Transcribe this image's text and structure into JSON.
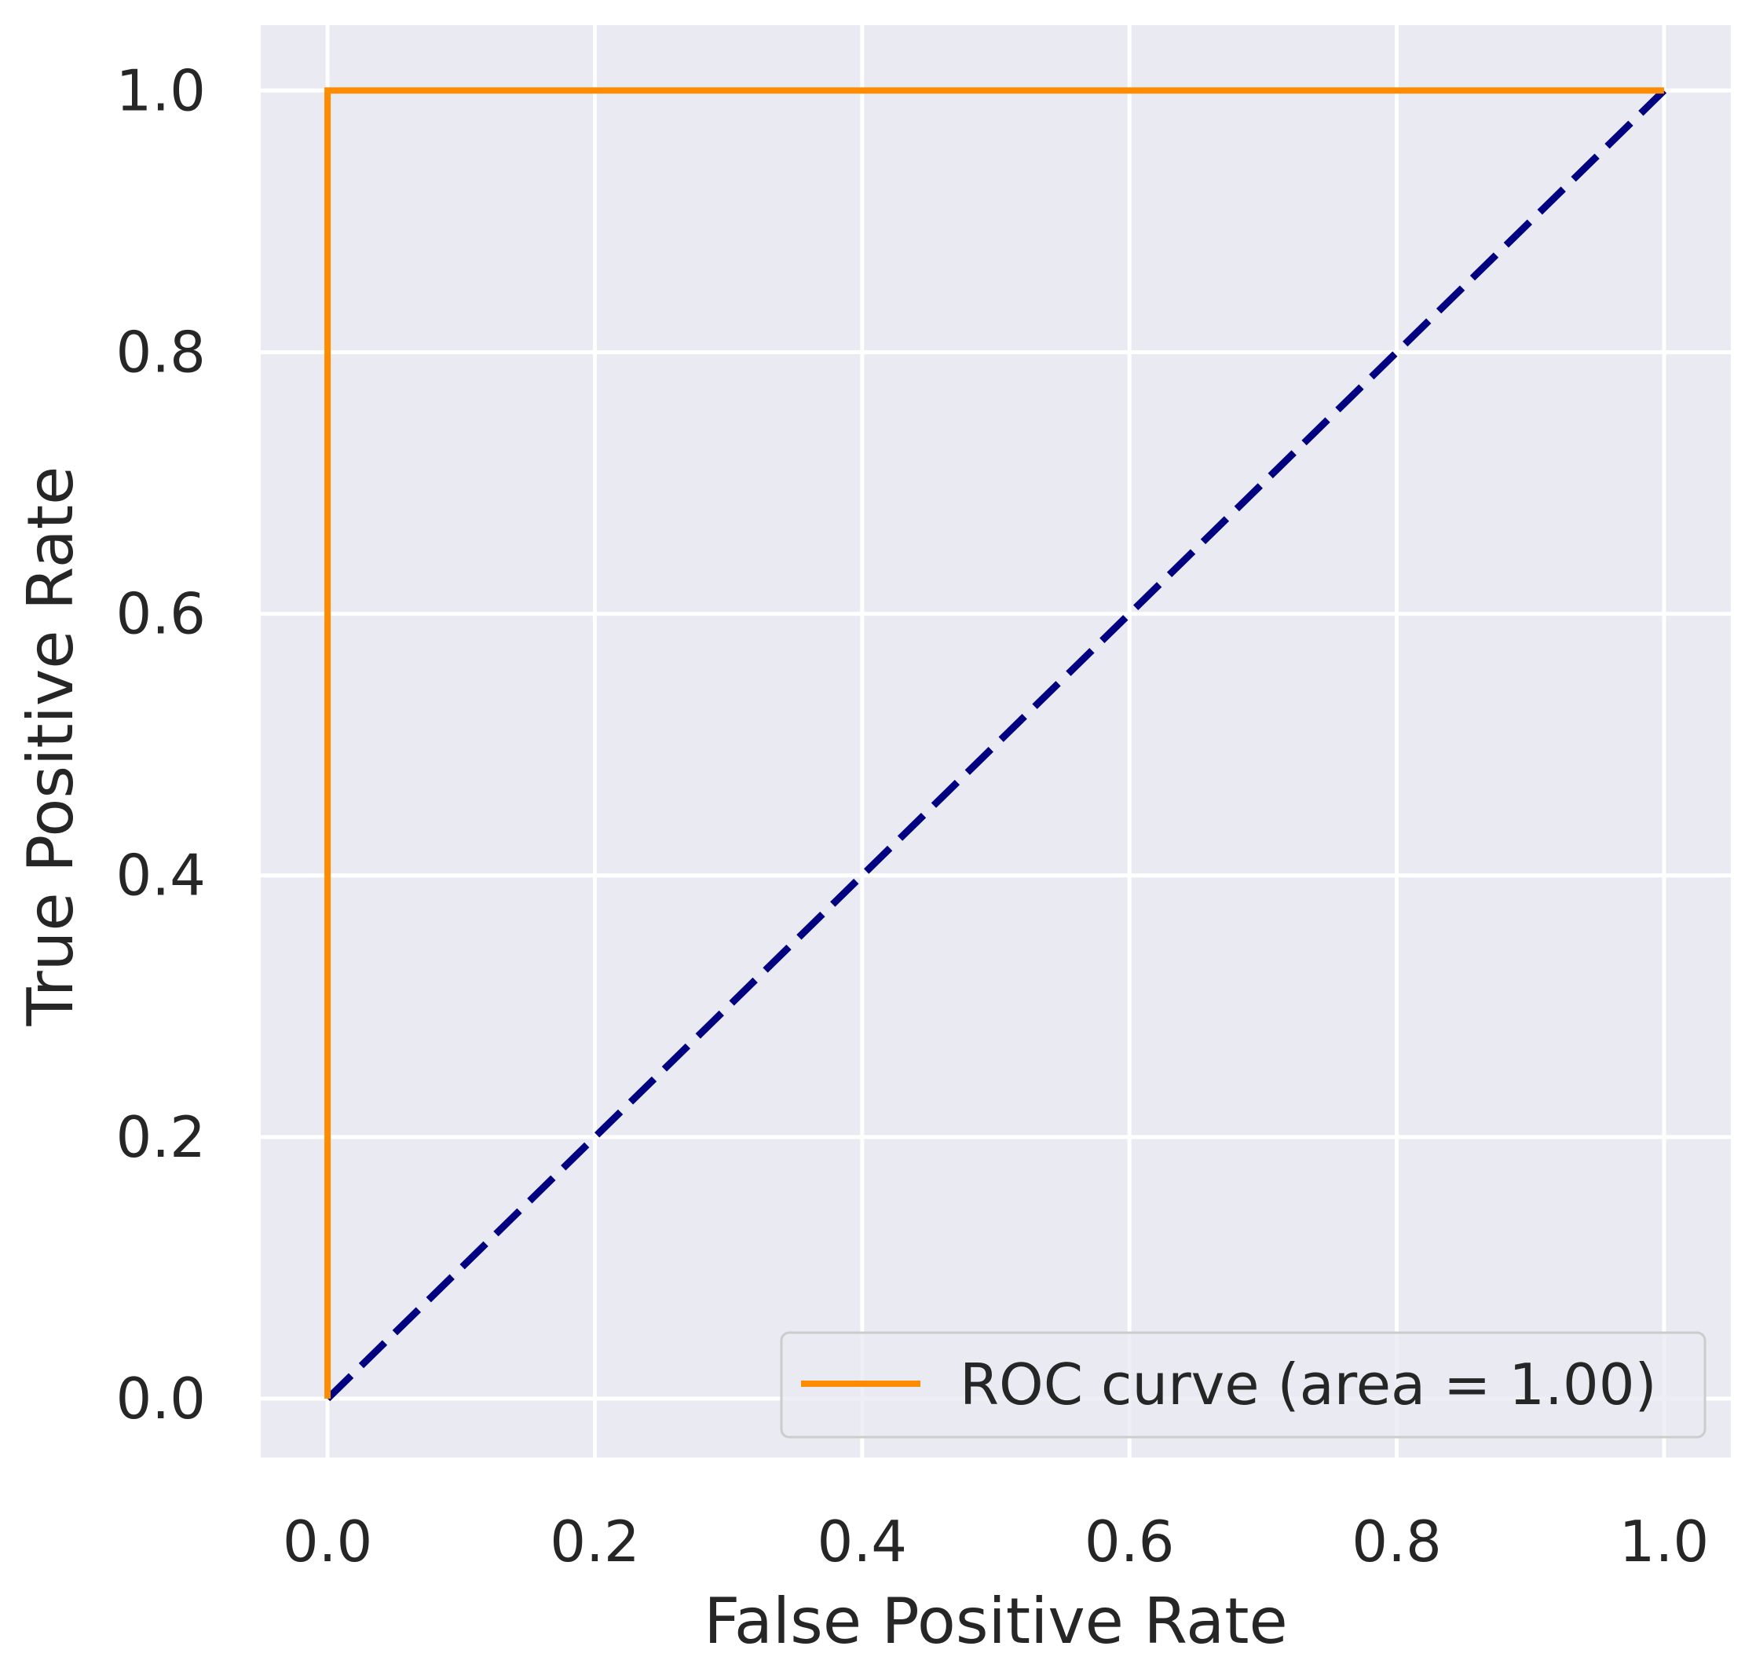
{
  "chart_data": {
    "type": "line",
    "title": "",
    "xlabel": "False Positive Rate",
    "ylabel": "True Positive Rate",
    "xlim": [
      -0.05,
      1.05
    ],
    "ylim": [
      -0.045,
      1.05
    ],
    "xticks": [
      0.0,
      0.2,
      0.4,
      0.6,
      0.8,
      1.0
    ],
    "yticks": [
      0.0,
      0.2,
      0.4,
      0.6,
      0.8,
      1.0
    ],
    "xtick_labels": [
      "0.0",
      "0.2",
      "0.4",
      "0.6",
      "0.8",
      "1.0"
    ],
    "ytick_labels": [
      "0.0",
      "0.2",
      "0.4",
      "0.6",
      "0.8",
      "1.0"
    ],
    "grid": true,
    "legend_position": "lower-right",
    "series": [
      {
        "name": "ROC curve (area = 1.00)",
        "x": [
          0.0,
          0.0,
          1.0
        ],
        "y": [
          0.0,
          1.0,
          1.0
        ],
        "color": "#ff8c00",
        "style": "solid"
      },
      {
        "x": [
          0.0,
          1.0
        ],
        "y": [
          0.0,
          1.0
        ],
        "color": "#000080",
        "style": "dashed"
      }
    ]
  },
  "colors": {
    "plot_background": "#eaeaf2",
    "grid": "#ffffff",
    "text": "#262626"
  }
}
